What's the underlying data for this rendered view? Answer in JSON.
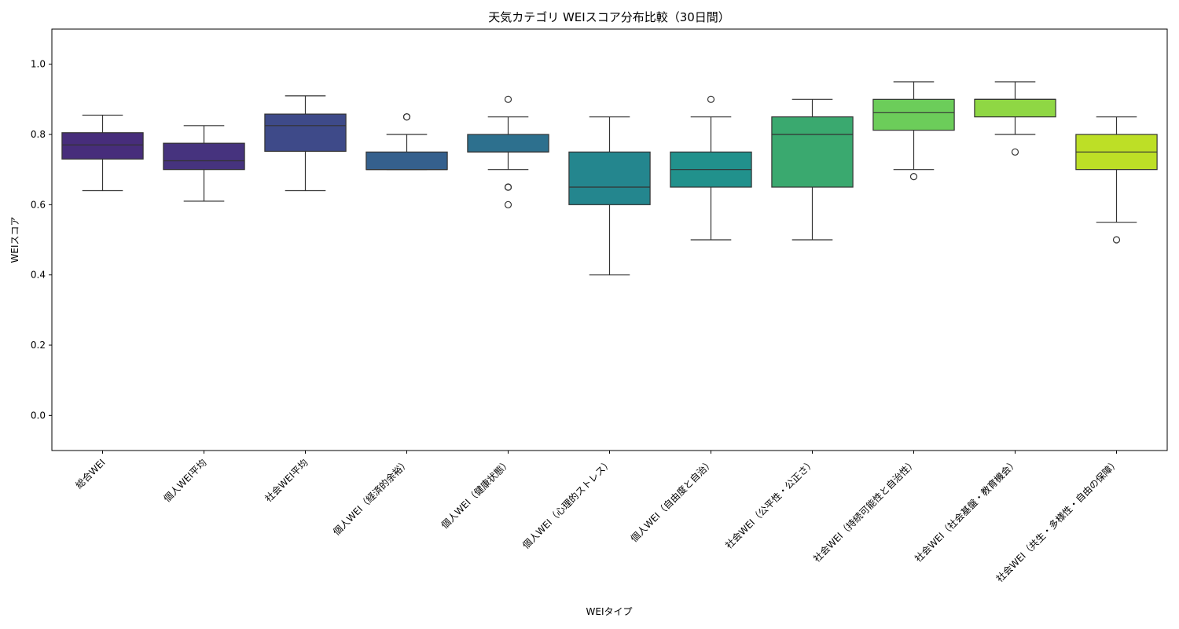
{
  "chart_data": {
    "type": "box",
    "title": "天気カテゴリ WEIスコア分布比較（30日間）",
    "xlabel": "WEIタイプ",
    "ylabel": "WEIスコア",
    "ylim": [
      -0.1,
      1.1
    ],
    "yticks": [
      "0.0",
      "0.2",
      "0.4",
      "0.6",
      "0.8",
      "1.0"
    ],
    "grid": false,
    "categories": [
      "総合WEI",
      "個人WEI平均",
      "社会WEI平均",
      "個人WEI（経済的余裕）",
      "個人WEI（健康状態）",
      "個人WEI（心理的ストレス）",
      "個人WEI（自由度と自治）",
      "社会WEI（公平性・公正さ）",
      "社会WEI（持続可能性と自治性）",
      "社会WEI（社会基盤・教育機会）",
      "社会WEI（共生・多様性・自由の保障）"
    ],
    "boxes": [
      {
        "whisker_low": 0.64,
        "q1": 0.73,
        "median": 0.77,
        "q3": 0.805,
        "whisker_high": 0.855,
        "outliers": [],
        "color": "#472d7b"
      },
      {
        "whisker_low": 0.61,
        "q1": 0.7,
        "median": 0.725,
        "q3": 0.775,
        "whisker_high": 0.825,
        "outliers": [],
        "color": "#46337e"
      },
      {
        "whisker_low": 0.64,
        "q1": 0.752,
        "median": 0.825,
        "q3": 0.858,
        "whisker_high": 0.91,
        "outliers": [],
        "color": "#3e4a89"
      },
      {
        "whisker_low": 0.7,
        "q1": 0.7,
        "median": 0.7,
        "q3": 0.75,
        "whisker_high": 0.8,
        "outliers": [
          0.85,
          0.85
        ],
        "color": "#35608d"
      },
      {
        "whisker_low": 0.7,
        "q1": 0.75,
        "median": 0.75,
        "q3": 0.8,
        "whisker_high": 0.85,
        "outliers": [
          0.9,
          0.65,
          0.65,
          0.6
        ],
        "color": "#2d708e"
      },
      {
        "whisker_low": 0.4,
        "q1": 0.6,
        "median": 0.65,
        "q3": 0.75,
        "whisker_high": 0.85,
        "outliers": [],
        "color": "#24868e"
      },
      {
        "whisker_low": 0.5,
        "q1": 0.65,
        "median": 0.7,
        "q3": 0.75,
        "whisker_high": 0.85,
        "outliers": [
          0.9
        ],
        "color": "#21918c"
      },
      {
        "whisker_low": 0.5,
        "q1": 0.65,
        "median": 0.8,
        "q3": 0.85,
        "whisker_high": 0.9,
        "outliers": [],
        "color": "#3aa96f"
      },
      {
        "whisker_low": 0.7,
        "q1": 0.812,
        "median": 0.862,
        "q3": 0.9,
        "whisker_high": 0.95,
        "outliers": [
          0.68
        ],
        "color": "#6ccd5a"
      },
      {
        "whisker_low": 0.8,
        "q1": 0.85,
        "median": 0.9,
        "q3": 0.9,
        "whisker_high": 0.95,
        "outliers": [
          0.75
        ],
        "color": "#8fd744"
      },
      {
        "whisker_low": 0.55,
        "q1": 0.7,
        "median": 0.75,
        "q3": 0.8,
        "whisker_high": 0.85,
        "outliers": [
          0.5
        ],
        "color": "#bddf26"
      }
    ]
  }
}
